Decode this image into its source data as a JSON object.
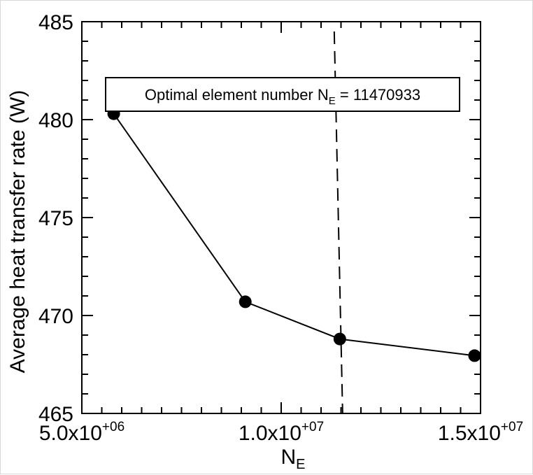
{
  "chart_data": {
    "type": "line",
    "xlabel": "N",
    "xlabel_subscript": "E",
    "ylabel": "Average heat transfer rate (W)",
    "xlim": [
      5000000,
      15000000
    ],
    "ylim": [
      465,
      485
    ],
    "xticks": [
      {
        "value": 5000000,
        "mantissa": "5.0x10",
        "exponent": "+06"
      },
      {
        "value": 10000000,
        "mantissa": "1.0x10",
        "exponent": "+07"
      },
      {
        "value": 15000000,
        "mantissa": "1.5x10",
        "exponent": "+07"
      }
    ],
    "yticks": [
      {
        "value": 465,
        "label": "465"
      },
      {
        "value": 470,
        "label": "470"
      },
      {
        "value": 475,
        "label": "475"
      },
      {
        "value": 480,
        "label": "480"
      },
      {
        "value": 485,
        "label": "485"
      }
    ],
    "series": [
      {
        "x": [
          5800000,
          9100000,
          11470933,
          14850000
        ],
        "y": [
          480.3,
          470.7,
          468.8,
          467.95
        ]
      }
    ],
    "reference_line": {
      "x": 11470933,
      "style": "dashed"
    },
    "annotation": {
      "prefix": "Optimal element number N",
      "subscript": "E",
      "suffix": " = 11470933"
    },
    "grid": false
  }
}
